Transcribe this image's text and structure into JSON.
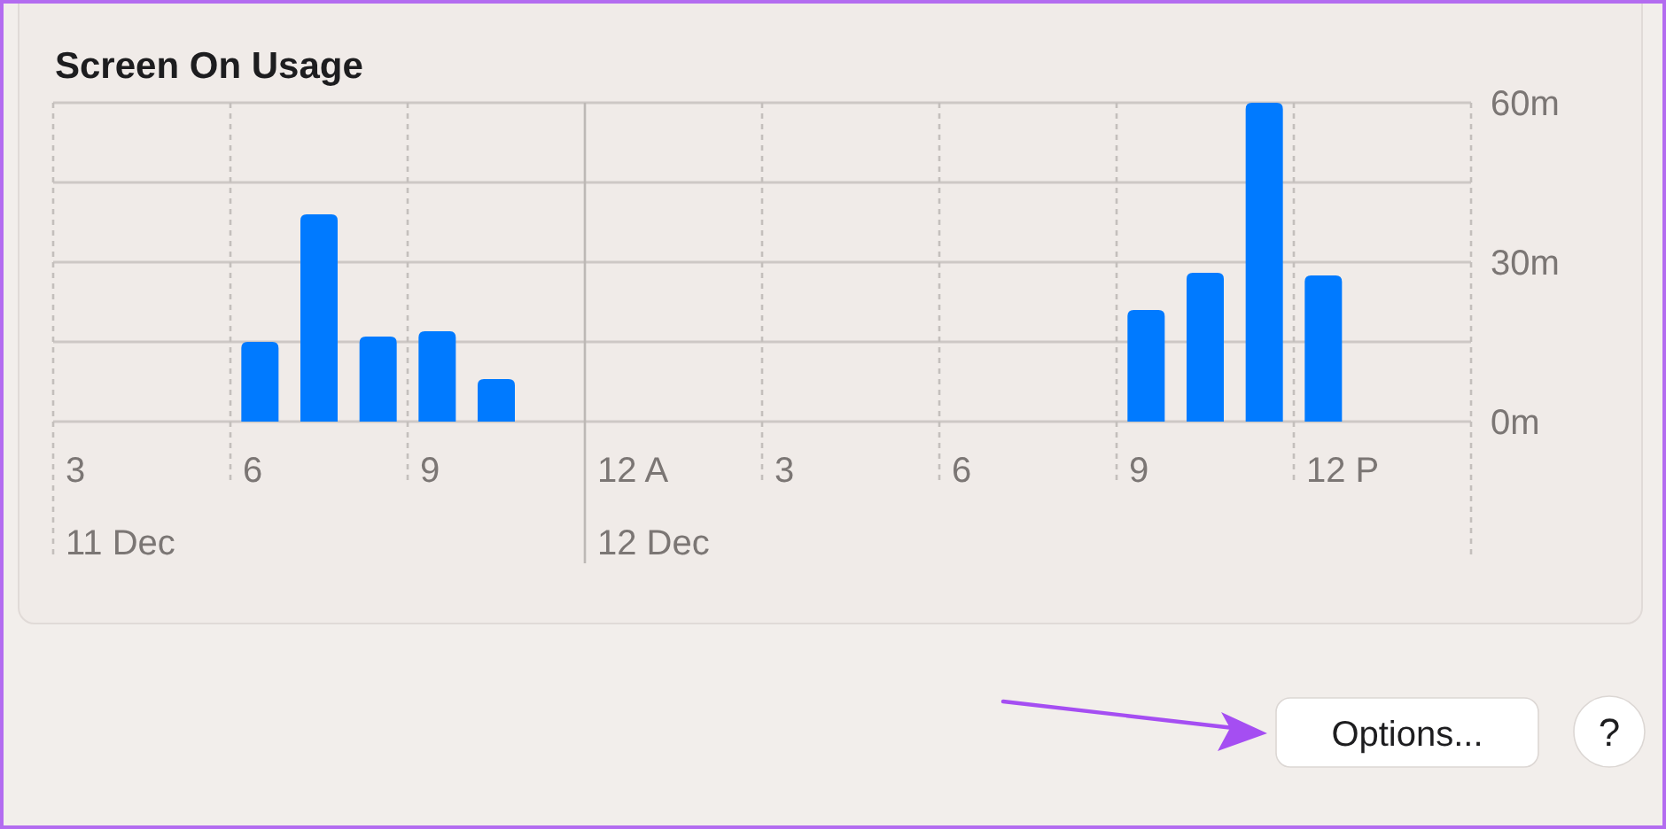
{
  "chart_data": {
    "type": "bar",
    "title": "Screen On Usage",
    "categories": [
      "3\n11 Dec",
      null,
      null,
      "6",
      null,
      null,
      "9",
      null,
      null,
      "12 A\n12 Dec",
      null,
      null,
      "3",
      null,
      null,
      "6",
      null,
      null,
      "9",
      null,
      null,
      "12 P",
      null,
      null
    ],
    "values": [
      0,
      0,
      0,
      15,
      39,
      16,
      17,
      8,
      0,
      0,
      0,
      0,
      0,
      0,
      0,
      0,
      0,
      0,
      21,
      28,
      60,
      27.5,
      0,
      0
    ],
    "color": "#007aff",
    "ylim": [
      0,
      60
    ],
    "yticks": [
      {
        "value": 0,
        "label": "0m"
      },
      {
        "value": 15,
        "label": null
      },
      {
        "value": 30,
        "label": "30m"
      },
      {
        "value": 45,
        "label": null
      },
      {
        "value": 60,
        "label": "60m"
      }
    ],
    "grid": true,
    "annotations": [
      "Options...",
      "?"
    ]
  }
}
